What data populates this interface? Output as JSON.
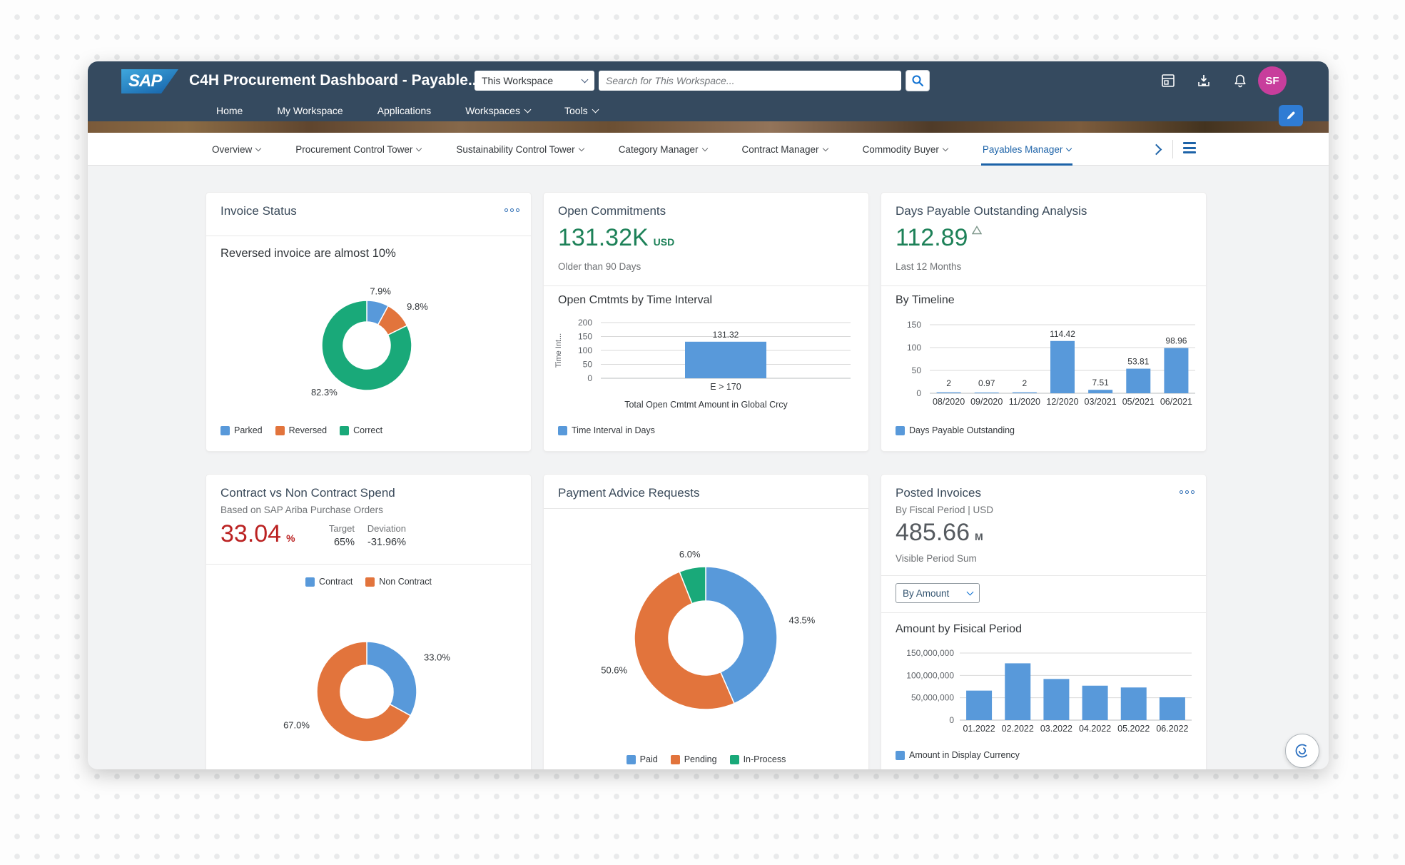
{
  "header": {
    "logo_text": "SAP",
    "title": "C4H Procurement Dashboard - Payable...",
    "workspace_selector": "This Workspace",
    "search_placeholder": "Search for This Workspace...",
    "avatar_initials": "SF",
    "nav_items": [
      {
        "label": "Home",
        "chevron": false
      },
      {
        "label": "My Workspace",
        "chevron": false
      },
      {
        "label": "Applications",
        "chevron": false
      },
      {
        "label": "Workspaces",
        "chevron": true
      },
      {
        "label": "Tools",
        "chevron": true
      }
    ]
  },
  "tabs": [
    {
      "label": "Overview",
      "active": false
    },
    {
      "label": "Procurement Control Tower",
      "active": false
    },
    {
      "label": "Sustainability Control Tower",
      "active": false
    },
    {
      "label": "Category Manager",
      "active": false
    },
    {
      "label": "Contract Manager",
      "active": false
    },
    {
      "label": "Commodity Buyer",
      "active": false
    },
    {
      "label": "Payables Manager",
      "active": true
    }
  ],
  "cards": {
    "invoice_status": {
      "title": "Invoice Status",
      "insight": "Reversed invoice are almost 10%"
    },
    "open_commitments": {
      "title": "Open Commitments",
      "kpi": "131.32K",
      "unit": "USD",
      "sub": "Older than 90 Days",
      "section": "Open Cmtmts by Time Interval",
      "xlabel": "Total Open Cmtmt Amount in Global Crcy"
    },
    "dpo": {
      "title": "Days Payable Outstanding Analysis",
      "kpi": "112.89",
      "sub": "Last 12 Months",
      "section": "By Timeline"
    },
    "contract_spend": {
      "title": "Contract vs Non Contract Spend",
      "subtitle": "Based on SAP Ariba Purchase Orders",
      "kpi": "33.04",
      "unit": "%",
      "target_label": "Target",
      "target_value": "65%",
      "deviation_label": "Deviation",
      "deviation_value": "-31.96%"
    },
    "payment_advice": {
      "title": "Payment Advice Requests"
    },
    "posted_invoices": {
      "title": "Posted Invoices",
      "subtitle": "By Fiscal Period | USD",
      "kpi": "485.66",
      "unit": "M",
      "sub": "Visible Period Sum",
      "select_value": "By Amount",
      "section": "Amount by Fisical Period"
    }
  },
  "chart_data": [
    {
      "id": "invoice_status_donut",
      "type": "pie",
      "title": "Invoice Status",
      "labels": [
        "Parked",
        "Reversed",
        "Correct"
      ],
      "values": [
        7.9,
        9.8,
        82.3
      ],
      "value_labels": [
        "7.9%",
        "9.8%",
        "82.3%"
      ],
      "colors": [
        "#5899da",
        "#e2743c",
        "#19a979"
      ],
      "donut": true,
      "legend_position": "bottom"
    },
    {
      "id": "open_cmtmts_bar",
      "type": "bar",
      "title": "Open Cmtmts by Time Interval",
      "categories": [
        "E > 170"
      ],
      "values": [
        131.32
      ],
      "value_labels": [
        "131.32"
      ],
      "ylim": [
        0,
        200
      ],
      "yticks": [
        0,
        50,
        100,
        150,
        200
      ],
      "ylabel": "Time Int...",
      "xlabel": "Total Open Cmtmt Amount in Global Crcy",
      "legend": [
        "Time Interval in Days"
      ],
      "color": "#5899da",
      "grid": true
    },
    {
      "id": "dpo_by_timeline",
      "type": "bar",
      "title": "By Timeline",
      "categories": [
        "08/2020",
        "09/2020",
        "11/2020",
        "12/2020",
        "03/2021",
        "05/2021",
        "06/2021"
      ],
      "values": [
        2,
        0.97,
        2,
        114.42,
        7.51,
        53.81,
        98.96
      ],
      "value_labels": [
        "2",
        "0.97",
        "2",
        "114.42",
        "7.51",
        "53.81",
        "98.96"
      ],
      "ylim": [
        0,
        150
      ],
      "yticks": [
        0,
        50,
        100,
        150
      ],
      "legend": [
        "Days Payable Outstanding"
      ],
      "color": "#5899da",
      "grid": true
    },
    {
      "id": "contract_spend_donut",
      "type": "pie",
      "title": "Contract vs Non Contract Spend",
      "labels": [
        "Contract",
        "Non Contract"
      ],
      "values": [
        33.0,
        67.0
      ],
      "value_labels": [
        "33.0%",
        "67.0%"
      ],
      "colors": [
        "#5899da",
        "#e2743c"
      ],
      "donut": true,
      "legend_position": "top"
    },
    {
      "id": "payment_advice_donut",
      "type": "pie",
      "title": "Payment Advice Requests",
      "labels": [
        "Paid",
        "Pending",
        "In-Process"
      ],
      "values": [
        43.5,
        50.6,
        6.0
      ],
      "value_labels": [
        "43.5%",
        "50.6%",
        "6.0%"
      ],
      "colors": [
        "#5899da",
        "#e2743c",
        "#19a979"
      ],
      "donut": true,
      "legend_position": "bottom"
    },
    {
      "id": "posted_invoices_bar",
      "type": "bar",
      "title": "Amount by Fisical Period",
      "categories": [
        "01.2022",
        "02.2022",
        "03.2022",
        "04.2022",
        "05.2022",
        "06.2022"
      ],
      "values": [
        66000000,
        127000000,
        92000000,
        77000000,
        73000000,
        51000000
      ],
      "ylim": [
        0,
        150000000
      ],
      "yticks": [
        0,
        50000000,
        100000000,
        150000000
      ],
      "ytick_labels": [
        "0",
        "50,000,000",
        "100,000,000",
        "150,000,000"
      ],
      "legend": [
        "Amount in Display Currency"
      ],
      "color": "#5899da",
      "grid": true
    }
  ],
  "colors": {
    "header_bg": "#354a5f",
    "accent_blue": "#0a6ed1",
    "active_tab": "#1d63a8",
    "chart_blue": "#5899da",
    "chart_orange": "#e2743c",
    "chart_green": "#19a979",
    "kpi_green": "#1d8158",
    "kpi_red": "#bb2222",
    "avatar_pink": "#c83e9c"
  }
}
